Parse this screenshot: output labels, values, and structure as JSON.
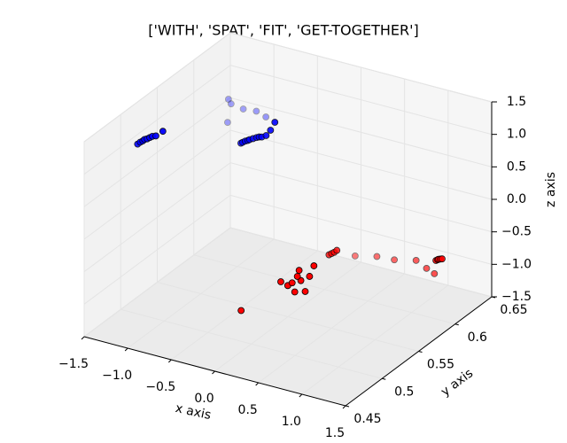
{
  "chart_data": {
    "type": "scatter3d",
    "title": "['WITH', 'SPAT', 'FIT', 'GET-TOGETHER']",
    "xlabel": "x axis",
    "ylabel": "y axis",
    "zlabel": "z axis",
    "xlim": [
      -1.5,
      1.5
    ],
    "ylim": [
      0.45,
      0.65
    ],
    "zlim": [
      -1.5,
      1.5
    ],
    "xticks": [
      {
        "value": -1.5,
        "label": "−1.5"
      },
      {
        "value": -1.0,
        "label": "−1.0"
      },
      {
        "value": -0.5,
        "label": "−0.5"
      },
      {
        "value": 0.0,
        "label": "0.0"
      },
      0.5,
      {
        "value": 1.0,
        "label": "1.0"
      },
      1.5
    ],
    "yticks": [
      0.45,
      0.5,
      0.55,
      0.6,
      0.65
    ],
    "zticks": [
      {
        "value": -1.5,
        "label": "−1.5"
      },
      {
        "value": -1.0,
        "label": "−1.0"
      },
      {
        "value": -0.5,
        "label": "−0.5"
      },
      {
        "value": 0.0,
        "label": "0.0"
      },
      0.5,
      {
        "value": 1.0,
        "label": "1.0"
      },
      1.5
    ],
    "grid": true,
    "series": [
      {
        "color": "#0000ff",
        "x": [
          -1.39,
          -1.36,
          -1.33,
          -1.31,
          -1.28,
          -1.25,
          -1.22,
          -1.18,
          -1.1,
          -0.54,
          -0.52,
          -0.49,
          -0.46,
          -0.44,
          -0.4,
          -0.36,
          -0.33,
          -0.3,
          -0.25,
          -0.2,
          -0.15,
          -1.27,
          -1.24,
          -1.1,
          -0.95,
          -0.84,
          -1.28
        ],
        "y": [
          0.51,
          0.51,
          0.51,
          0.51,
          0.51,
          0.51,
          0.51,
          0.51,
          0.51,
          0.55,
          0.55,
          0.55,
          0.55,
          0.55,
          0.55,
          0.55,
          0.55,
          0.55,
          0.55,
          0.55,
          0.55,
          0.62,
          0.62,
          0.62,
          0.62,
          0.62,
          0.62
        ],
        "z": [
          1.0,
          1.04,
          1.07,
          1.1,
          1.12,
          1.15,
          1.18,
          1.2,
          1.3,
          0.98,
          1.0,
          1.03,
          1.05,
          1.07,
          1.1,
          1.13,
          1.15,
          1.16,
          1.2,
          1.3,
          1.44,
          0.81,
          0.75,
          0.72,
          0.74,
          0.69,
          0.45
        ]
      },
      {
        "color": "#ff0000",
        "x": [
          0.05,
          0.17,
          0.25,
          0.3,
          0.33,
          0.4,
          0.45,
          0.5,
          0.55,
          0.36,
          0.38,
          0.22,
          0.25,
          0.28,
          0.31,
          0.1,
          0.35,
          0.55,
          0.8,
          0.92,
          1.01,
          1.28,
          1.3,
          1.31,
          1.33,
          1.35
        ],
        "y": [
          0.48,
          0.52,
          0.52,
          0.52,
          0.52,
          0.52,
          0.52,
          0.52,
          0.52,
          0.52,
          0.52,
          0.58,
          0.58,
          0.58,
          0.58,
          0.63,
          0.63,
          0.63,
          0.63,
          0.63,
          0.63,
          0.6,
          0.6,
          0.6,
          0.6,
          0.6
        ],
        "z": [
          -0.8,
          -0.65,
          -0.68,
          -0.62,
          -0.75,
          -0.55,
          -0.7,
          -0.45,
          -0.27,
          -0.5,
          -0.4,
          -0.72,
          -0.69,
          -0.66,
          -0.62,
          -1.2,
          -1.12,
          -1.1,
          -1.02,
          -1.1,
          -1.15,
          -0.6,
          -0.58,
          -0.57,
          -0.56,
          -0.55
        ]
      }
    ]
  }
}
